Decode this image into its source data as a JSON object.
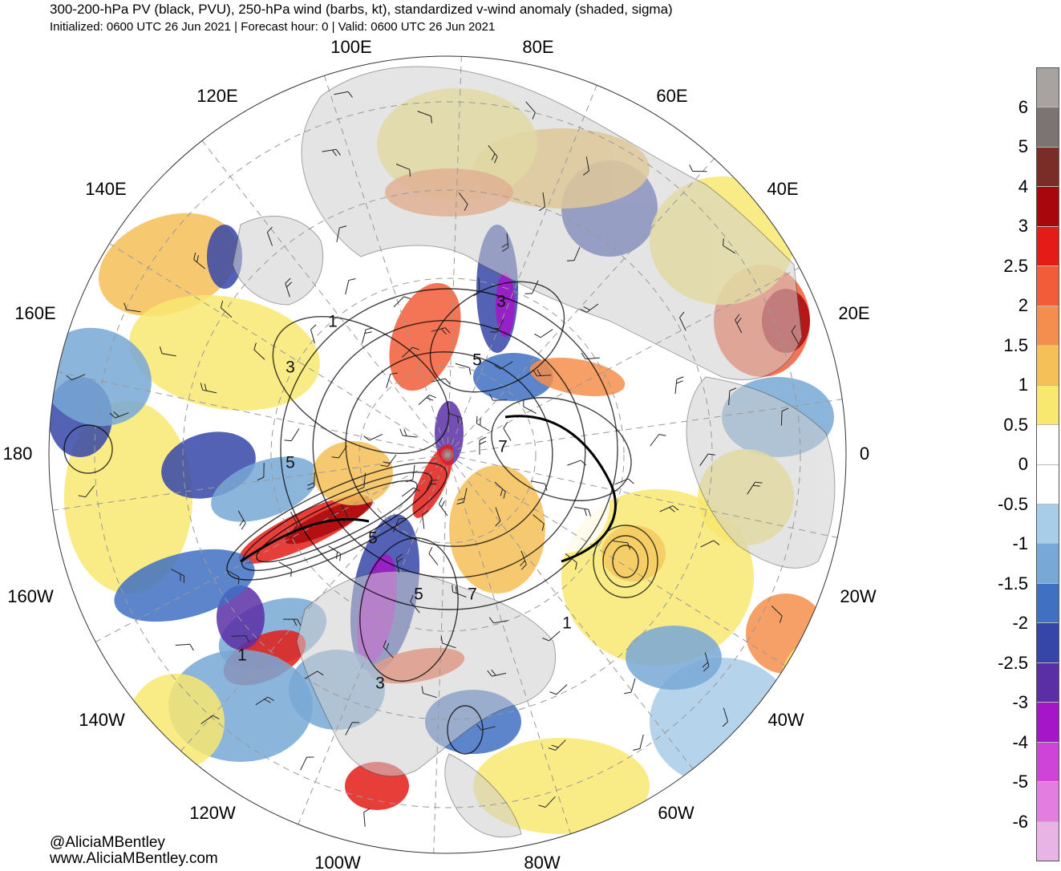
{
  "header": {
    "title": "300-200-hPa PV (black, PVU), 250-hPa wind (barbs, kt), standardized v-wind anomaly (shaded, sigma)",
    "subtitle": "Initialized: 0600 UTC 26 Jun 2021 | Forecast hour: 0 | Valid: 0600 UTC 26 Jun 2021"
  },
  "map": {
    "projection": "north polar stereographic",
    "longitude_labels": [
      "100E",
      "80E",
      "60E",
      "40E",
      "20E",
      "0",
      "20W",
      "40W",
      "60W",
      "80W",
      "100W",
      "120W",
      "140W",
      "160W",
      "180",
      "160E",
      "140E",
      "120E"
    ],
    "pv_contour_labels": [
      "1",
      "3",
      "5",
      "3",
      "5",
      "7",
      "5",
      "5",
      "7",
      "1",
      "3",
      "1"
    ],
    "land_color": "#cfcfcf",
    "pv_contour_color": "#000000",
    "grid_color": "#999999"
  },
  "colorbar": {
    "labels": [
      "6",
      "5",
      "4",
      "3",
      "2.5",
      "2",
      "1.5",
      "1",
      "0.5",
      "0",
      "-0.5",
      "-1",
      "-1.5",
      "-2",
      "-2.5",
      "-3",
      "-4",
      "-5",
      "-6"
    ],
    "colors": [
      "#a8a2a0",
      "#7c7472",
      "#7a2c26",
      "#a8080c",
      "#e31c18",
      "#f25c38",
      "#f48e4c",
      "#f5c058",
      "#f8e870",
      "#ffffff",
      "#ffffff",
      "#a8cde8",
      "#78a8d6",
      "#3f70c2",
      "#3646a8",
      "#5a2fa6",
      "#a416c8",
      "#cf44d8",
      "#e37de0",
      "#e8b4e6"
    ]
  },
  "credits": {
    "handle": "@AliciaMBentley",
    "website": "www.AliciaMBentley.com"
  }
}
